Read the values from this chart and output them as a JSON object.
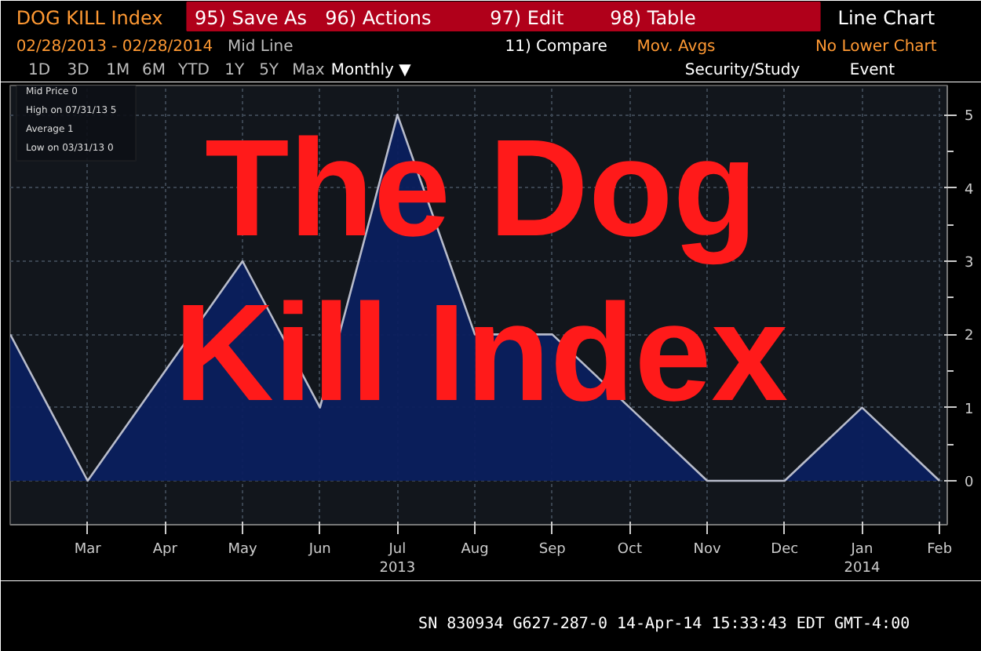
{
  "chart_data": {
    "type": "area",
    "title": "The Dog Kill Index",
    "categories": [
      null,
      "Mar",
      "Apr",
      "May",
      "Jun",
      "Jul",
      "Aug",
      "Sep",
      "Oct",
      "Nov",
      "Dec",
      "Jan",
      "Feb"
    ],
    "series": [
      {
        "color": "#0b1f5e",
        "values": [
          2,
          0,
          1.5,
          3,
          1,
          5,
          2,
          2,
          1,
          0,
          0,
          1,
          0
        ]
      }
    ],
    "ylim": [
      -0.6,
      5.4
    ],
    "yticks": [
      0,
      1,
      2,
      3,
      4,
      5
    ],
    "grid": true,
    "annotations": [
      "DOG KILL Index",
      "95) Save As",
      "96) Actions",
      "97) Edit",
      "98) Table",
      "Line Chart",
      "02/28/2013 - 02/28/2014",
      "Mid Line",
      "11) Compare",
      "Mov. Avgs",
      "No Lower Chart",
      "1D",
      "3D",
      "1M",
      "6M",
      "YTD",
      "1Y",
      "5Y",
      "Max",
      "Monthly ▼",
      "Security/Study",
      "Event",
      "Mid Price 0",
      "High on 07/31/13 5",
      "Average 1",
      "Low on 03/31/13 0",
      "2013",
      "2014",
      "SN 830934 G627-287-0 14-Apr-14 15:33:43 EDT GMT-4:00"
    ]
  }
}
